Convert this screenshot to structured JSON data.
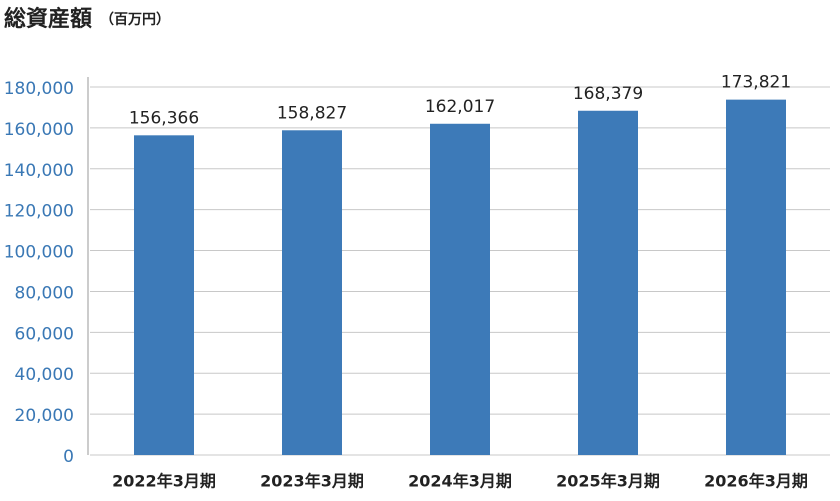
{
  "chart_data": {
    "type": "bar",
    "title": "総資産額",
    "subtitle": "（百万円）",
    "categories": [
      "2022年3月期",
      "2023年3月期",
      "2024年3月期",
      "2025年3月期",
      "2026年3月期"
    ],
    "values": [
      156366,
      158827,
      162017,
      168379,
      173821
    ],
    "value_labels": [
      "156,366",
      "158,827",
      "162,017",
      "168,379",
      "173,821"
    ],
    "color": "#3d7ab8",
    "ylim": [
      0,
      180000
    ],
    "yticks": [
      0,
      {
        "value": 20000,
        "label": "20,000"
      },
      {
        "value": 40000,
        "label": "40,000"
      },
      {
        "value": 60000,
        "label": "60,000"
      },
      {
        "value": 80000,
        "label": "80,000"
      },
      {
        "value": 100000,
        "label": "100,000"
      },
      {
        "value": 120000,
        "label": "120,000"
      },
      {
        "value": 140000,
        "label": "140,000"
      },
      {
        "value": 160000,
        "label": "160,000"
      },
      {
        "value": 180000,
        "label": "180,000"
      }
    ],
    "grid": true
  }
}
